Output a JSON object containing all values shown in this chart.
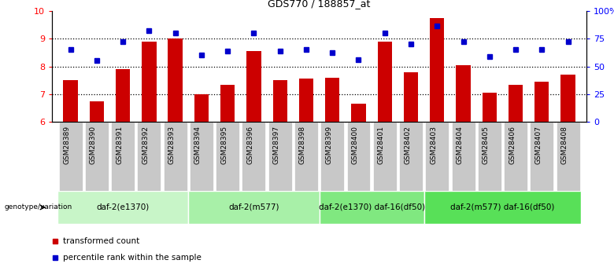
{
  "title": "GDS770 / 188857_at",
  "samples": [
    "GSM28389",
    "GSM28390",
    "GSM28391",
    "GSM28392",
    "GSM28393",
    "GSM28394",
    "GSM28395",
    "GSM28396",
    "GSM28397",
    "GSM28398",
    "GSM28399",
    "GSM28400",
    "GSM28401",
    "GSM28402",
    "GSM28403",
    "GSM28404",
    "GSM28405",
    "GSM28406",
    "GSM28407",
    "GSM28408"
  ],
  "bar_values": [
    7.5,
    6.75,
    7.9,
    8.9,
    9.0,
    7.0,
    7.35,
    8.55,
    7.5,
    7.55,
    7.6,
    6.65,
    8.9,
    7.8,
    9.75,
    8.05,
    7.05,
    7.35,
    7.45,
    7.7
  ],
  "dot_values": [
    8.6,
    8.2,
    8.9,
    9.3,
    9.2,
    8.4,
    8.55,
    9.2,
    8.55,
    8.6,
    8.5,
    8.25,
    9.2,
    8.8,
    9.45,
    8.9,
    8.35,
    8.6,
    8.6,
    8.9
  ],
  "bar_color": "#cc0000",
  "dot_color": "#0000cc",
  "ylim_left": [
    6,
    10
  ],
  "ylim_right": [
    0,
    100
  ],
  "yticks_left": [
    6,
    7,
    8,
    9,
    10
  ],
  "ytick_labels_right": [
    "0",
    "25",
    "50",
    "75",
    "100%"
  ],
  "yticks_right": [
    0,
    25,
    50,
    75,
    100
  ],
  "groups": [
    {
      "label": "daf-2(e1370)",
      "start": 0,
      "end": 5,
      "color": "#c8f5c8"
    },
    {
      "label": "daf-2(m577)",
      "start": 5,
      "end": 10,
      "color": "#a8f0a8"
    },
    {
      "label": "daf-2(e1370) daf-16(df50)",
      "start": 10,
      "end": 14,
      "color": "#80e880"
    },
    {
      "label": "daf-2(m577) daf-16(df50)",
      "start": 14,
      "end": 20,
      "color": "#58e058"
    }
  ],
  "tick_bg_color": "#c8c8c8",
  "genotype_label": "genotype/variation",
  "legend_bar_label": "transformed count",
  "legend_dot_label": "percentile rank within the sample",
  "background_color": "#ffffff",
  "grid_color": "#000000",
  "spine_color": "#000000"
}
